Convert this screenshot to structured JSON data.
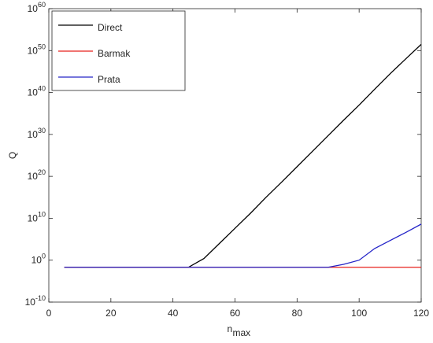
{
  "chart_data": {
    "type": "line",
    "ylabel": "Q",
    "xlabel": "n",
    "xlabel_sub": "max",
    "x": [
      5,
      10,
      15,
      20,
      25,
      30,
      35,
      40,
      45,
      50,
      55,
      60,
      65,
      70,
      75,
      80,
      85,
      90,
      95,
      100,
      105,
      110,
      115,
      120
    ],
    "series": [
      {
        "name": "Direct",
        "color": "#000000",
        "values": [
          0.02,
          0.02,
          0.02,
          0.02,
          0.02,
          0.02,
          0.02,
          0.02,
          0.02,
          2.5,
          10000.0,
          40000000.0,
          160000000000.0,
          1000000000000000.0,
          4e+18,
          2e+22,
          1e+26,
          5e+29,
          2.5e+33,
          1e+37,
          6e+40,
          3e+44,
          1e+48,
          3e+51
        ]
      },
      {
        "name": "Barmak",
        "color": "#e8201c",
        "values": [
          0.02,
          0.02,
          0.02,
          0.02,
          0.02,
          0.02,
          0.02,
          0.02,
          0.02,
          0.02,
          0.02,
          0.02,
          0.02,
          0.02,
          0.02,
          0.02,
          0.02,
          0.02,
          0.02,
          0.02,
          0.02,
          0.02,
          0.02,
          0.02
        ]
      },
      {
        "name": "Prata",
        "color": "#2424c8",
        "values": [
          0.02,
          0.02,
          0.02,
          0.02,
          0.02,
          0.02,
          0.02,
          0.02,
          0.02,
          0.02,
          0.02,
          0.02,
          0.02,
          0.02,
          0.02,
          0.02,
          0.02,
          0.02,
          0.1,
          1,
          600,
          50000.0,
          4000000.0,
          400000000.0
        ]
      }
    ],
    "xlim": [
      0,
      120
    ],
    "xticks": [
      0,
      20,
      40,
      60,
      80,
      100,
      120
    ],
    "ylim": [
      1e-10,
      1e+60
    ],
    "ylog": true,
    "yticks": [
      {
        "value": 1e-10,
        "label": "10^-10"
      },
      {
        "value": 1,
        "label": "10^0"
      },
      {
        "value": 10000000000.0,
        "label": "10^10"
      },
      {
        "value": 1e+20,
        "label": "10^20"
      },
      {
        "value": 1e+30,
        "label": "10^30"
      },
      {
        "value": 1e+40,
        "label": "10^40"
      },
      {
        "value": 1e+50,
        "label": "10^50"
      },
      {
        "value": 1e+60,
        "label": "10^60"
      }
    ],
    "grid": false,
    "legend": "upper-left"
  }
}
